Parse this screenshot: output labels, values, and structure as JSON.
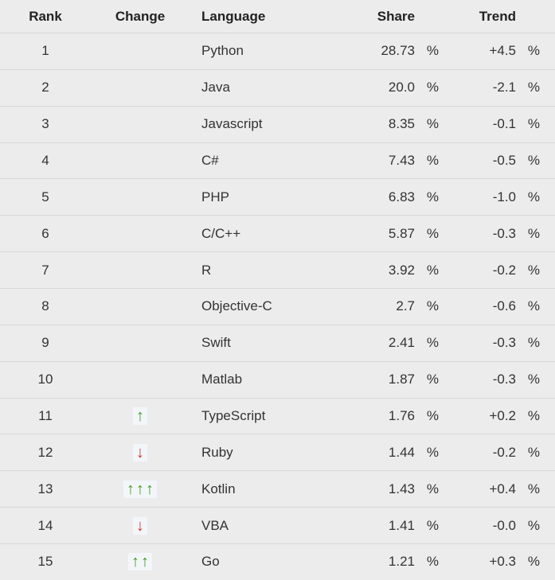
{
  "columns": {
    "rank": "Rank",
    "change": "Change",
    "language": "Language",
    "share": "Share",
    "trend": "Trend"
  },
  "unit": "%",
  "colors": {
    "background": "#ececec",
    "divider": "#d8d8d8",
    "text": "#333333",
    "header_text": "#222222",
    "arrow_up": "#3f9c26",
    "arrow_down": "#cc392b",
    "arrow_badge_bg": "#f3f6f8"
  },
  "icons": {
    "up_arrow": "↑",
    "down_arrow": "↓"
  },
  "rows": [
    {
      "rank": "1",
      "change": {
        "direction": "",
        "count": 0
      },
      "language": "Python",
      "share": "28.73",
      "trend": "+4.5"
    },
    {
      "rank": "2",
      "change": {
        "direction": "",
        "count": 0
      },
      "language": "Java",
      "share": "20.0",
      "trend": "-2.1"
    },
    {
      "rank": "3",
      "change": {
        "direction": "",
        "count": 0
      },
      "language": "Javascript",
      "share": "8.35",
      "trend": "-0.1"
    },
    {
      "rank": "4",
      "change": {
        "direction": "",
        "count": 0
      },
      "language": "C#",
      "share": "7.43",
      "trend": "-0.5"
    },
    {
      "rank": "5",
      "change": {
        "direction": "",
        "count": 0
      },
      "language": "PHP",
      "share": "6.83",
      "trend": "-1.0"
    },
    {
      "rank": "6",
      "change": {
        "direction": "",
        "count": 0
      },
      "language": "C/C++",
      "share": "5.87",
      "trend": "-0.3"
    },
    {
      "rank": "7",
      "change": {
        "direction": "",
        "count": 0
      },
      "language": "R",
      "share": "3.92",
      "trend": "-0.2"
    },
    {
      "rank": "8",
      "change": {
        "direction": "",
        "count": 0
      },
      "language": "Objective-C",
      "share": "2.7",
      "trend": "-0.6"
    },
    {
      "rank": "9",
      "change": {
        "direction": "",
        "count": 0
      },
      "language": "Swift",
      "share": "2.41",
      "trend": "-0.3"
    },
    {
      "rank": "10",
      "change": {
        "direction": "",
        "count": 0
      },
      "language": "Matlab",
      "share": "1.87",
      "trend": "-0.3"
    },
    {
      "rank": "11",
      "change": {
        "direction": "up",
        "count": 1
      },
      "language": "TypeScript",
      "share": "1.76",
      "trend": "+0.2"
    },
    {
      "rank": "12",
      "change": {
        "direction": "down",
        "count": 1
      },
      "language": "Ruby",
      "share": "1.44",
      "trend": "-0.2"
    },
    {
      "rank": "13",
      "change": {
        "direction": "up",
        "count": 3
      },
      "language": "Kotlin",
      "share": "1.43",
      "trend": "+0.4"
    },
    {
      "rank": "14",
      "change": {
        "direction": "down",
        "count": 1
      },
      "language": "VBA",
      "share": "1.41",
      "trend": "-0.0"
    },
    {
      "rank": "15",
      "change": {
        "direction": "up",
        "count": 2
      },
      "language": "Go",
      "share": "1.21",
      "trend": "+0.3"
    }
  ]
}
